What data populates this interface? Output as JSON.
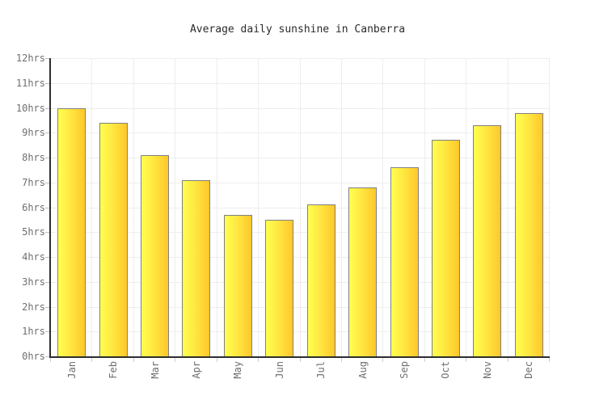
{
  "page": {
    "background_color": "#ffffff"
  },
  "chart_data": {
    "type": "bar",
    "title": "Average daily sunshine in Canberra",
    "categories": [
      "Jan",
      "Feb",
      "Mar",
      "Apr",
      "May",
      "Jun",
      "Jul",
      "Aug",
      "Sep",
      "Oct",
      "Nov",
      "Dec"
    ],
    "values": [
      10.0,
      9.4,
      8.1,
      7.1,
      5.7,
      5.5,
      6.1,
      6.8,
      7.6,
      8.7,
      9.3,
      9.8
    ],
    "unit": "hrs",
    "xlabel": "",
    "ylabel": "",
    "ylim": [
      0,
      12
    ],
    "ytick_step": 1,
    "ytick_labels": [
      "0hrs",
      "1hrs",
      "2hrs",
      "3hrs",
      "4hrs",
      "5hrs",
      "6hrs",
      "7hrs",
      "8hrs",
      "9hrs",
      "10hrs",
      "11hrs",
      "12hrs"
    ],
    "grid": true,
    "legend": "none",
    "colors": {
      "bar_gradient_left": "#ffff50",
      "bar_gradient_right": "#ffc72b",
      "bar_border": "#808080",
      "axis": "#2e2e2e",
      "gridline": "#ededed",
      "tick": "#cccccc",
      "axis_label_text": "#6e6e6e",
      "title_text": "#2b2b2b",
      "background": "#ffffff"
    }
  }
}
